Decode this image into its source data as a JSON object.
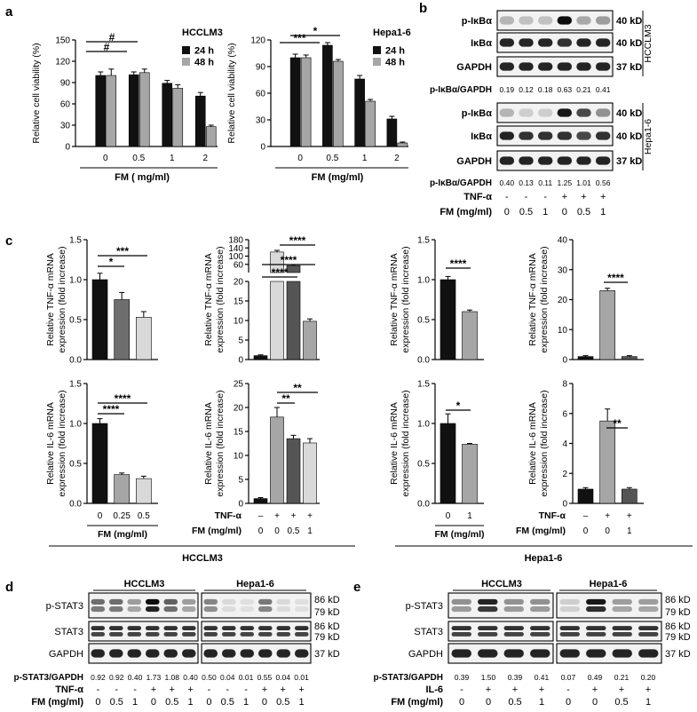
{
  "panels": {
    "a": "a",
    "b": "b",
    "c": "c",
    "d": "d",
    "e": "e"
  },
  "chart_a": [
    {
      "cell_line": "HCCLM3",
      "type": "bar",
      "categories": [
        "0",
        "0.5",
        "1",
        "2"
      ],
      "series": [
        {
          "name": "24 h",
          "color": "#111111",
          "values": [
            100,
            101,
            89,
            71
          ],
          "errors": [
            5,
            4,
            4,
            5
          ]
        },
        {
          "name": "48 h",
          "color": "#a6a6a6",
          "values": [
            100,
            104,
            82,
            28
          ],
          "errors": [
            9,
            5,
            5,
            2
          ]
        }
      ],
      "ylabel": "Relative cell viability (%)",
      "xlabel": "FM  ( mg/ml)",
      "ylim": [
        0,
        150
      ],
      "yticks": [
        "0",
        "30",
        "60",
        "90",
        "120",
        "150"
      ],
      "significance": [
        {
          "label": "#"
        },
        {
          "label": "#"
        }
      ]
    },
    {
      "cell_line": "Hepa1-6",
      "type": "bar",
      "categories": [
        "0",
        "0.5",
        "1",
        "2"
      ],
      "series": [
        {
          "name": "24 h",
          "color": "#111111",
          "values": [
            100,
            114,
            76,
            31
          ],
          "errors": [
            4,
            3,
            4,
            3
          ]
        },
        {
          "name": "48 h",
          "color": "#a6a6a6",
          "values": [
            100,
            96,
            51,
            4
          ],
          "errors": [
            3,
            2,
            2,
            1
          ]
        }
      ],
      "ylabel": "Relative cell viability (%)",
      "xlabel": "FM  (mg/ml)",
      "ylim": [
        0,
        120
      ],
      "yticks": [
        "0",
        "30",
        "60",
        "90",
        "120"
      ],
      "significance": [
        {
          "label": "***"
        },
        {
          "label": "*"
        }
      ]
    }
  ],
  "chart_c": [
    {
      "type": "bar",
      "ylabel": "Relative TNF-α mRNA",
      "ylabel2": "expression (fold increase)",
      "ylim": [
        0,
        1.5
      ],
      "yticks": [
        "0.0",
        "0.5",
        "1.0",
        "1.5"
      ],
      "values": [
        1.0,
        0.75,
        0.53
      ],
      "errors": [
        0.08,
        0.09,
        0.07
      ],
      "colors": [
        "#111111",
        "#6e6e6e",
        "#d9d9d9"
      ],
      "significance": [
        "*",
        "***"
      ]
    },
    {
      "type": "bar",
      "broken_axis": true,
      "ylabel": "Relative TNF-α mRNA",
      "ylabel2": "expression (fold increase)",
      "ylim_lower": [
        0,
        20
      ],
      "ylim_upper": [
        20,
        180
      ],
      "yticks_lower": [
        "0",
        "5",
        "10",
        "15",
        "20"
      ],
      "yticks_upper": [
        "60",
        "100",
        "140",
        "180"
      ],
      "values": [
        1,
        120,
        54,
        9.8
      ],
      "errors": [
        0.2,
        8,
        4,
        0.6
      ],
      "colors": [
        "#111111",
        "#d9d9d9",
        "#555555",
        "#a6a6a6"
      ],
      "significance": [
        "****",
        "****",
        "****"
      ]
    },
    {
      "type": "bar",
      "ylabel": "Relative TNF-α mRNA",
      "ylabel2": "expression (fold increase)",
      "ylim": [
        0,
        1.5
      ],
      "yticks": [
        "0.0",
        "0.5",
        "1.0",
        "1.5"
      ],
      "values": [
        1.0,
        0.6
      ],
      "errors": [
        0.04,
        0.02
      ],
      "colors": [
        "#111111",
        "#a6a6a6"
      ],
      "significance": [
        "****"
      ]
    },
    {
      "type": "bar",
      "ylabel": "Relative TNF-α mRNA",
      "ylabel2": "expression (fold increase)",
      "ylim": [
        0,
        40
      ],
      "yticks": [
        "0",
        "10",
        "20",
        "30",
        "40"
      ],
      "values": [
        1,
        23,
        1
      ],
      "errors": [
        0.3,
        0.8,
        0.3
      ],
      "colors": [
        "#111111",
        "#a6a6a6",
        "#555555"
      ],
      "significance": [
        "****"
      ]
    },
    {
      "type": "bar",
      "ylabel": "Relative IL-6 mRNA",
      "ylabel2": "expression (fold increase)",
      "ylim": [
        0,
        1.5
      ],
      "yticks": [
        "0.0",
        "0.5",
        "1.0",
        "1.5"
      ],
      "values": [
        1.0,
        0.36,
        0.31
      ],
      "errors": [
        0.06,
        0.02,
        0.03
      ],
      "colors": [
        "#111111",
        "#a6a6a6",
        "#d9d9d9"
      ],
      "significance": [
        "****",
        "****"
      ]
    },
    {
      "type": "bar",
      "ylabel": "Relative IL-6 mRNA",
      "ylabel2": "expression (fold increase)",
      "ylim": [
        0,
        25
      ],
      "yticks": [
        "0",
        "5",
        "10",
        "15",
        "20",
        "25"
      ],
      "values": [
        1,
        18,
        13.5,
        12.6
      ],
      "errors": [
        0.2,
        2,
        0.7,
        0.9
      ],
      "colors": [
        "#111111",
        "#a6a6a6",
        "#555555",
        "#d9d9d9"
      ],
      "significance": [
        "**",
        "**"
      ]
    },
    {
      "type": "bar",
      "ylabel": "Relative IL-6 mRNA",
      "ylabel2": "expression (fold increase)",
      "ylim": [
        0,
        1.5
      ],
      "yticks": [
        "0.0",
        "0.5",
        "1.0",
        "1.5"
      ],
      "values": [
        1.0,
        0.74
      ],
      "errors": [
        0.12,
        0.01
      ],
      "colors": [
        "#111111",
        "#a6a6a6"
      ],
      "significance": [
        "*"
      ]
    },
    {
      "type": "bar",
      "ylabel": "Relative IL-6 mRNA",
      "ylabel2": "expression (fold increase)",
      "ylim": [
        0,
        8
      ],
      "yticks": [
        "0",
        "2",
        "4",
        "6",
        "8"
      ],
      "values": [
        0.95,
        5.5,
        0.95
      ],
      "errors": [
        0.1,
        0.8,
        0.1
      ],
      "colors": [
        "#111111",
        "#a6a6a6",
        "#555555"
      ],
      "significance": [
        "**"
      ]
    }
  ],
  "chart_c_labels": {
    "fm": "FM (mg/ml)",
    "tnf": "TNF-α",
    "col1_ticks": [
      "0",
      "0.25",
      "0.5"
    ],
    "col2_tnf": [
      "–",
      "+",
      "+",
      "+"
    ],
    "col2_fm": [
      "0",
      "0",
      "0.5",
      "1"
    ],
    "col3_ticks": [
      "0",
      "1"
    ],
    "col4_tnf": [
      "–",
      "+",
      "+"
    ],
    "col4_fm": [
      "0",
      "0",
      "1"
    ],
    "group_left": "HCCLM3",
    "group_right": "Hepa1-6"
  },
  "blot_b": {
    "cell_lines": [
      "HCCLM3",
      "Hepa1-6"
    ],
    "rows": [
      "p-IκBα",
      "IκBα",
      "GAPDH"
    ],
    "kd": [
      "40 kD",
      "40 kD",
      "37 kD"
    ],
    "ratio_label": "p-IκBα/GAPDH",
    "ratios_hcclm3": [
      "0.19",
      "0.12",
      "0.18",
      "0.63",
      "0.21",
      "0.41"
    ],
    "ratios_hepa": [
      "0.40",
      "0.13",
      "0.11",
      "1.25",
      "1.01",
      "0.56"
    ],
    "tnf_label": "TNF-α",
    "tnf": [
      "-",
      "-",
      "-",
      "+",
      "+",
      "+"
    ],
    "fm_label": "FM (mg/ml)",
    "fm": [
      "0",
      "0.5",
      "1",
      "0",
      "0.5",
      "1"
    ]
  },
  "blot_d": {
    "cell_lines": [
      "HCCLM3",
      "Hepa1-6"
    ],
    "rows": [
      "p-STAT3",
      "STAT3",
      "GAPDH"
    ],
    "kd_pstat": [
      "86 kD",
      "79 kD"
    ],
    "kd_stat": [
      "86 kD",
      "79 kD"
    ],
    "kd_gapdh": "37 kD",
    "ratio_label": "p-STAT3/GAPDH",
    "ratios": [
      "0.92",
      "0.92",
      "0.40",
      "1.73",
      "1.08",
      "0.40",
      "0.50",
      "0.04",
      "0.01",
      "0.55",
      "0.04",
      "0.01"
    ],
    "tnf_label": "TNF-α",
    "tnf": [
      "-",
      "-",
      "-",
      "+",
      "+",
      "+",
      "-",
      "-",
      "-",
      "+",
      "+",
      "+"
    ],
    "fm_label": "FM (mg/ml)",
    "fm": [
      "0",
      "0.5",
      "1",
      "0",
      "0.5",
      "1",
      "0",
      "0.5",
      "1",
      "0",
      "0.5",
      "1"
    ]
  },
  "blot_e": {
    "cell_lines": [
      "HCCLM3",
      "Hepa1-6"
    ],
    "rows": [
      "p-STAT3",
      "STAT3",
      "GAPDH"
    ],
    "kd_pstat": [
      "86 kD",
      "79 kD"
    ],
    "kd_stat": [
      "86 kD",
      "79 kD"
    ],
    "kd_gapdh": "37 kD",
    "ratio_label": "p-STAT3/GAPDH",
    "ratios": [
      "0.39",
      "1.50",
      "0.39",
      "0.41",
      "0.07",
      "0.49",
      "0.21",
      "0.20"
    ],
    "il6_label": "IL-6",
    "il6": [
      "-",
      "+",
      "+",
      "+",
      "-",
      "+",
      "+",
      "+"
    ],
    "fm_label": "FM (mg/ml)",
    "fm": [
      "0",
      "0",
      "0.5",
      "1",
      "0",
      "0",
      "0.5",
      "1"
    ]
  },
  "blot_intensity": {
    "b_hcc_p": [
      0.25,
      0.2,
      0.2,
      0.95,
      0.3,
      0.35
    ],
    "b_hcc_t": [
      0.85,
      0.85,
      0.85,
      0.8,
      0.85,
      0.85
    ],
    "b_hcc_g": [
      0.85,
      0.85,
      0.85,
      0.85,
      0.85,
      0.85
    ],
    "b_hep_p": [
      0.25,
      0.15,
      0.15,
      0.9,
      0.7,
      0.4
    ],
    "b_hep_t": [
      0.85,
      0.8,
      0.8,
      0.8,
      0.7,
      0.8
    ],
    "b_hep_g": [
      0.85,
      0.85,
      0.85,
      0.85,
      0.85,
      0.85
    ],
    "d_p": [
      0.55,
      0.55,
      0.35,
      0.95,
      0.6,
      0.35,
      0.45,
      0.1,
      0.08,
      0.5,
      0.1,
      0.08
    ],
    "d_t": [
      0.8,
      0.8,
      0.8,
      0.8,
      0.8,
      0.8,
      0.8,
      0.8,
      0.8,
      0.8,
      0.8,
      0.8
    ],
    "d_g": [
      0.85,
      0.85,
      0.85,
      0.85,
      0.85,
      0.85,
      0.85,
      0.85,
      0.85,
      0.85,
      0.85,
      0.85
    ],
    "e_p": [
      0.4,
      0.85,
      0.4,
      0.4,
      0.15,
      0.9,
      0.35,
      0.35
    ],
    "e_t": [
      0.8,
      0.8,
      0.8,
      0.8,
      0.8,
      0.8,
      0.8,
      0.8
    ],
    "e_g": [
      0.85,
      0.85,
      0.85,
      0.85,
      0.85,
      0.85,
      0.85,
      0.85
    ]
  }
}
